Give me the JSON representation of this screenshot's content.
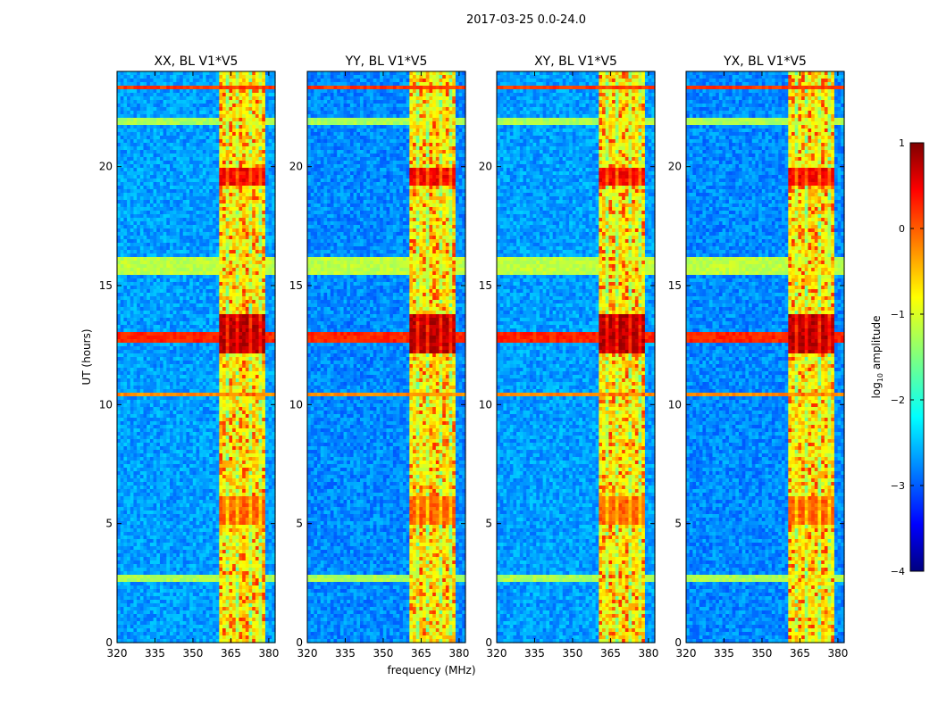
{
  "chart_data": {
    "type": "heatmap",
    "suptitle": "2017-03-25 0.0-24.0",
    "xlabel": "frequency (MHz)",
    "ylabel": "UT (hours)",
    "xlim": [
      320,
      382.5
    ],
    "ylim": [
      0,
      24
    ],
    "xticks": [
      320,
      335,
      350,
      365,
      380
    ],
    "yticks": [
      0,
      5,
      10,
      15,
      20
    ],
    "panels": [
      {
        "title": "XX, BL V1*V5"
      },
      {
        "title": "YY, BL V1*V5"
      },
      {
        "title": "XY, BL V1*V5"
      },
      {
        "title": "YX, BL V1*V5"
      }
    ],
    "colorbar": {
      "label": "log10 amplitude",
      "range": [
        -4,
        1
      ],
      "ticks": [
        -4,
        -3,
        -2,
        -1,
        0,
        1
      ],
      "colormap": "jet"
    },
    "features": {
      "background_level": -2.6,
      "rfi_band_mhz": [
        360,
        378
      ],
      "rfi_band_level": -0.8,
      "rfi_channel_gaps_mhz": [
        363.7,
        368,
        372.3,
        376.6
      ],
      "intense_times_hours": [
        {
          "range": [
            12.2,
            13.8
          ],
          "level": 0.9
        },
        {
          "range": [
            19.2,
            20.0
          ],
          "level": 0.6
        },
        {
          "range": [
            4.9,
            6.2
          ],
          "level": 0.1
        }
      ],
      "broadband_rfi_hours": [
        {
          "range": [
            15.5,
            16.2
          ],
          "level": -1.2
        },
        {
          "range": [
            12.6,
            13.1
          ],
          "level": 0.2
        },
        {
          "range": [
            23.2,
            23.35
          ],
          "level": 0.1
        },
        {
          "range": [
            10.3,
            10.45
          ],
          "level": -0.3
        },
        {
          "range": [
            21.8,
            22.0
          ],
          "level": -1.3
        },
        {
          "range": [
            2.6,
            2.8
          ],
          "level": -1.3
        }
      ]
    }
  }
}
